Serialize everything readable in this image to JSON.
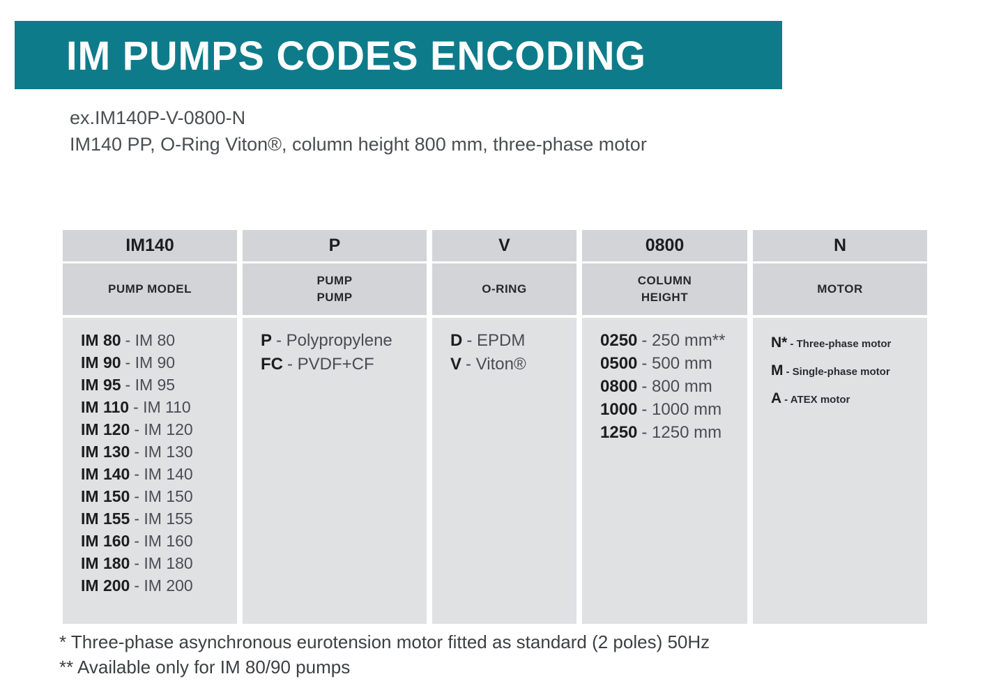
{
  "page": {
    "title": "IM PUMPS CODES ENCODING",
    "example_code": "ex.IM140P-V-0800-N",
    "example_description": "IM140 PP, O-Ring Viton®, column height 800 mm, three-phase motor",
    "footnote1": "* Three-phase asynchronous eurotension motor fitted as standard (2 poles) 50Hz",
    "footnote2": "** Available only for IM 80/90 pumps"
  },
  "colors": {
    "banner": "#0e7b8a",
    "header_cell": "#d2d4d7",
    "body_cell": "#dfe1e3"
  },
  "table": {
    "columns": [
      {
        "code": "IM140",
        "label1": "PUMP MODEL",
        "items": [
          {
            "code": "IM 80",
            "desc": "- IM 80"
          },
          {
            "code": "IM 90",
            "desc": "- IM 90"
          },
          {
            "code": "IM 95",
            "desc": "- IM 95"
          },
          {
            "code": "IM 110",
            "desc": "- IM 110"
          },
          {
            "code": "IM 120",
            "desc": "- IM 120"
          },
          {
            "code": "IM 130",
            "desc": "- IM 130"
          },
          {
            "code": "IM 140",
            "desc": "- IM 140"
          },
          {
            "code": "IM 150",
            "desc": "- IM 150"
          },
          {
            "code": "IM 155",
            "desc": "- IM 155"
          },
          {
            "code": "IM 160",
            "desc": "- IM 160"
          },
          {
            "code": "IM 180",
            "desc": "- IM 180"
          },
          {
            "code": "IM 200",
            "desc": "- IM 200"
          }
        ]
      },
      {
        "code": "P",
        "label1": "PUMP",
        "label2": "PUMP",
        "items": [
          {
            "code": "P",
            "desc": "- Polypropylene"
          },
          {
            "code": "FC",
            "desc": "- PVDF+CF"
          }
        ]
      },
      {
        "code": "V",
        "label1": "O-RING",
        "items": [
          {
            "code": "D",
            "desc": "- EPDM"
          },
          {
            "code": "V",
            "desc": "- Viton®"
          }
        ]
      },
      {
        "code": "0800",
        "label1": "COLUMN",
        "label2": "HEIGHT",
        "items": [
          {
            "code": "0250",
            "desc": "- 250 mm**"
          },
          {
            "code": "0500",
            "desc": "- 500 mm"
          },
          {
            "code": "0800",
            "desc": "- 800 mm"
          },
          {
            "code": "1000",
            "desc": "- 1000 mm"
          },
          {
            "code": "1250",
            "desc": "- 1250 mm"
          }
        ]
      },
      {
        "code": "N",
        "label1": "MOTOR",
        "items": [
          {
            "code": "N*",
            "desc": "- Three-phase motor"
          },
          {
            "code": "M",
            "desc": "- Single-phase motor"
          },
          {
            "code": "A",
            "desc": "- ATEX motor"
          }
        ]
      }
    ]
  }
}
